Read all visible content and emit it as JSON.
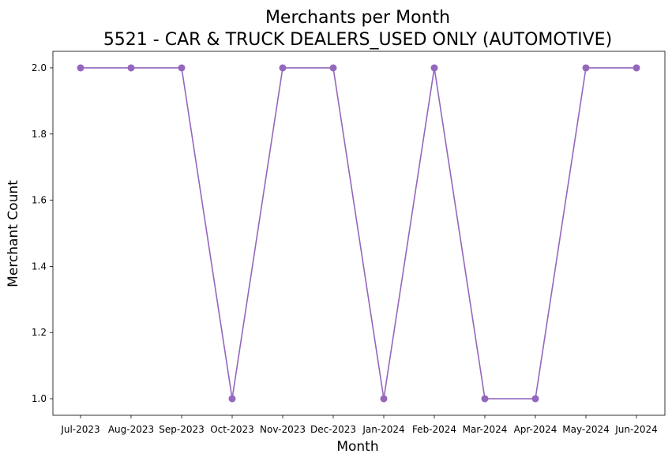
{
  "chart_data": {
    "type": "line",
    "title": "Merchants per Month",
    "subtitle": "5521 - CAR & TRUCK DEALERS_USED ONLY (AUTOMOTIVE)",
    "xlabel": "Month",
    "ylabel": "Merchant Count",
    "categories": [
      "Jul-2023",
      "Aug-2023",
      "Sep-2023",
      "Oct-2023",
      "Nov-2023",
      "Dec-2023",
      "Jan-2024",
      "Feb-2024",
      "Mar-2024",
      "Apr-2024",
      "May-2024",
      "Jun-2024"
    ],
    "series": [
      {
        "values": [
          2,
          2,
          2,
          1,
          2,
          2,
          1,
          2,
          1,
          1,
          2,
          2
        ],
        "color": "#9467bd",
        "marker": "circle"
      }
    ],
    "ylim": [
      0.95,
      2.05
    ],
    "yticks": [
      1.0,
      1.2,
      1.4,
      1.6,
      1.8,
      2.0
    ],
    "ytick_labels": [
      "1.0",
      "1.2",
      "1.4",
      "1.6",
      "1.8",
      "2.0"
    ],
    "grid": false,
    "legend": "none"
  }
}
